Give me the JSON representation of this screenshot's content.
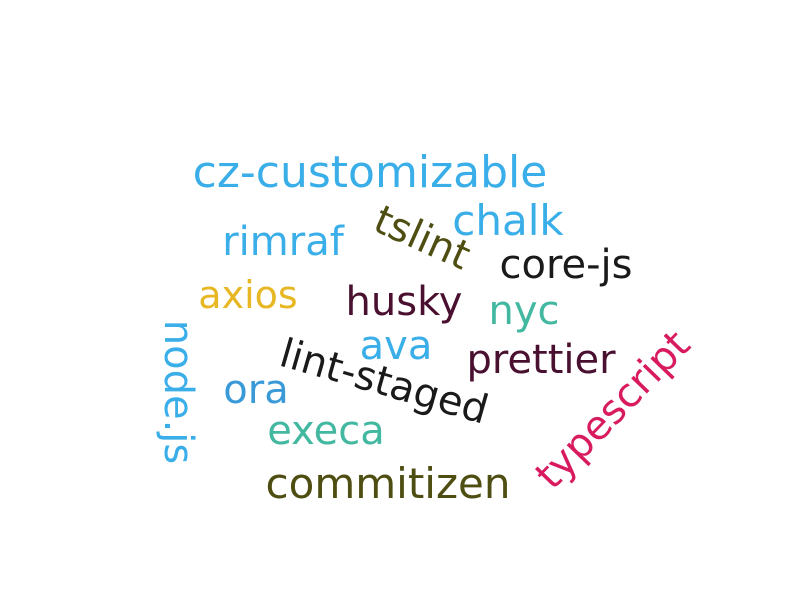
{
  "words": [
    {
      "text": "cz-customizable",
      "color": "#3aaee8"
    },
    {
      "text": "chalk",
      "color": "#3aaee8"
    },
    {
      "text": "tslint",
      "color": "#4e4e12"
    },
    {
      "text": "rimraf",
      "color": "#3aaee8"
    },
    {
      "text": "core-js",
      "color": "#1a1a1a"
    },
    {
      "text": "axios",
      "color": "#e7b724"
    },
    {
      "text": "husky",
      "color": "#4a1030"
    },
    {
      "text": "nyc",
      "color": "#43b8a0"
    },
    {
      "text": "node.js",
      "color": "#3aaee8"
    },
    {
      "text": "ava",
      "color": "#3aaee8"
    },
    {
      "text": "lint-staged",
      "color": "#1a1a1a"
    },
    {
      "text": "prettier",
      "color": "#4a1030"
    },
    {
      "text": "typescript",
      "color": "#d81a5e"
    },
    {
      "text": "ora",
      "color": "#3a9ad8"
    },
    {
      "text": "execa",
      "color": "#43b8a0"
    },
    {
      "text": "commitizen",
      "color": "#4e4e12"
    }
  ]
}
